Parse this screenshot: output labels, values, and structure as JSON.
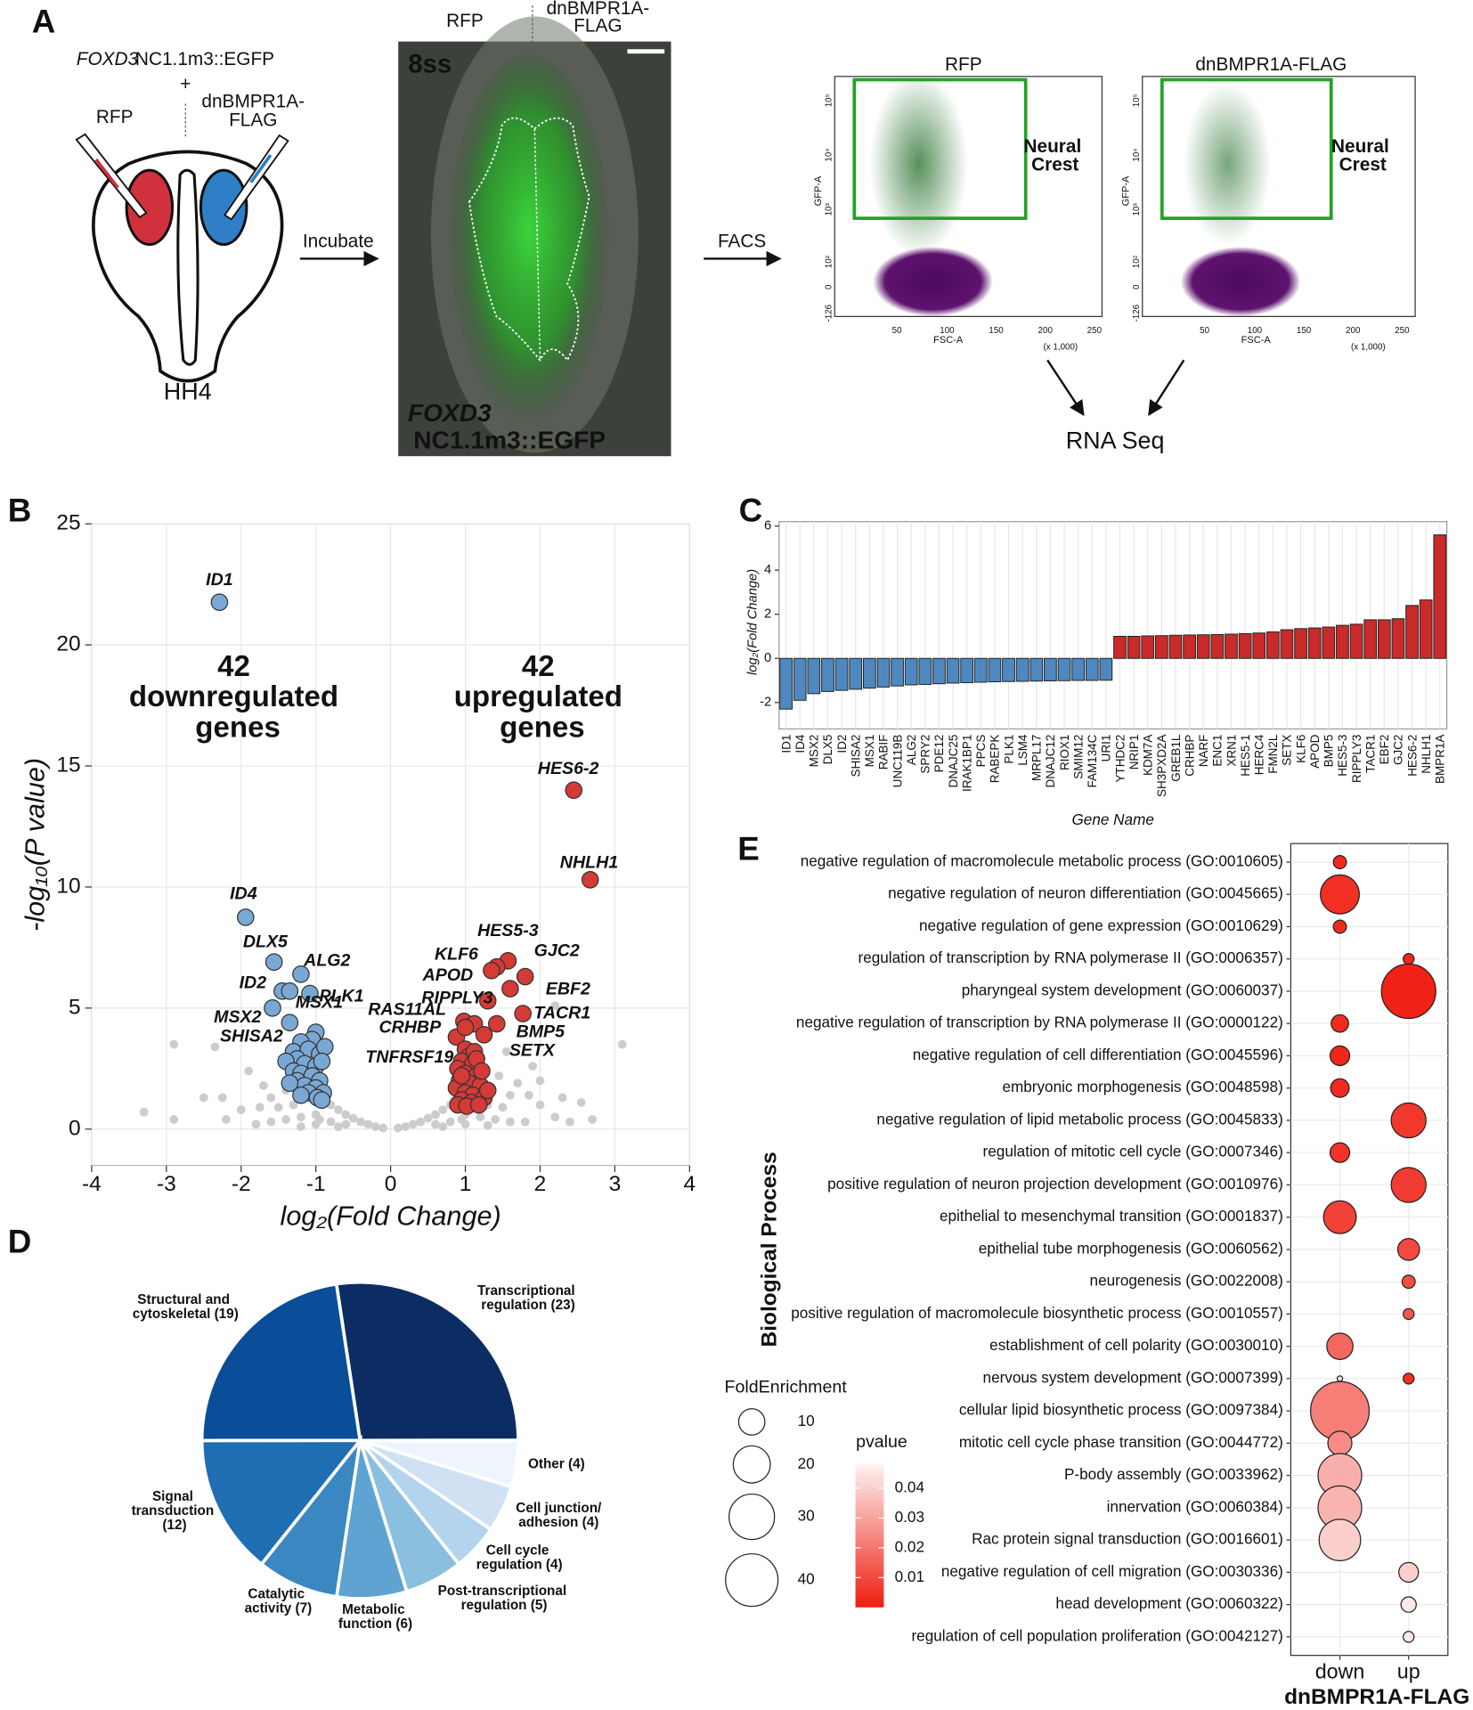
{
  "panel_labels": [
    "A",
    "B",
    "C",
    "D",
    "E"
  ],
  "diagram": {
    "reporter": {
      "gene": "FOXD3",
      "construct": "NC1.1m3::EGFP"
    },
    "plus": "+",
    "left_label": "RFP",
    "right_label": "dnBMPR1A-FLAG",
    "stage": "HH4",
    "step1": "Incubate",
    "image": {
      "left": "RFP",
      "right": "dnBMPR1A-FLAG",
      "stage": "8ss",
      "gene": "FOXD3",
      "construct": "NC1.1m3::EGFP"
    },
    "step2": "FACS",
    "facs": [
      {
        "title": "RFP"
      },
      {
        "title": "dnBMPR1A-FLAG"
      }
    ],
    "gate": "Neural Crest",
    "xlabel": "FSC-A",
    "ylabel": "GFP-A",
    "xticks": [
      "50",
      "100",
      "150",
      "200",
      "250"
    ],
    "xunit": "(x 1,000)",
    "yticks": [
      "-126",
      "0",
      "10²",
      "10³",
      "10⁴",
      "10⁵"
    ],
    "output": "RNA Seq"
  },
  "chart_data": [
    {
      "type": "scatter",
      "xlabel": "log₂(Fold Change)",
      "ylabel": "-log₁₀(P value)",
      "xlim": [
        -4,
        4
      ],
      "ylim": [
        -1.5,
        25
      ],
      "xticks": [
        -4,
        -3,
        -2,
        -1,
        0,
        1,
        2,
        3,
        4
      ],
      "yticks": [
        0,
        5,
        10,
        15,
        20,
        25
      ],
      "grid": true,
      "annotations": [
        "42 downregulated genes",
        "42 upregulated genes"
      ],
      "series": [
        {
          "color": "#cccccc",
          "x": [
            -0.1,
            0.1,
            -0.2,
            0.2,
            -0.3,
            0.3,
            -0.4,
            0.4,
            -0.5,
            0.5,
            -0.6,
            0.6,
            -0.7,
            0.7,
            -0.8,
            0.8,
            -0.9,
            0.85,
            -1.0,
            1.0,
            -1.2,
            1.2,
            -1.4,
            1.4,
            -1.6,
            1.6,
            -1.8,
            1.8,
            -0.6,
            0.6,
            -0.8,
            0.8,
            -1.0,
            1.0,
            -1.3,
            1.3,
            -1.5,
            1.5,
            -1.6,
            1.6,
            -1.7,
            1.7,
            -1.4,
            1.45,
            -2.0,
            2.0,
            -2.2,
            2.2,
            -1.9,
            1.9,
            1.55,
            -0.95,
            0.95,
            -0.7,
            0.7,
            -1.2,
            1.3,
            2.0,
            -2.5,
            -2.25,
            -3.3,
            -2.9,
            -2.9,
            -2.35,
            2.2,
            3.1,
            2.7,
            2.55,
            2.3,
            1.85,
            -1.75,
            2.4
          ],
          "y": [
            0.05,
            0.05,
            0.1,
            0.1,
            0.2,
            0.2,
            0.3,
            0.3,
            0.45,
            0.45,
            0.6,
            0.6,
            0.8,
            0.8,
            1.0,
            1.0,
            1.1,
            1.2,
            0.6,
            0.6,
            0.5,
            0.5,
            0.4,
            0.4,
            0.3,
            0.3,
            0.2,
            0.3,
            0.2,
            0.2,
            0.3,
            0.3,
            0.2,
            0.2,
            1.0,
            1.0,
            0.9,
            0.9,
            1.3,
            1.4,
            1.8,
            1.9,
            1.6,
            2.2,
            0.8,
            1.0,
            0.4,
            0.5,
            2.4,
            2.6,
            3.2,
            0.4,
            0.4,
            0.1,
            0.1,
            0.1,
            0.15,
            2.0,
            1.3,
            1.3,
            0.7,
            0.4,
            3.5,
            3.4,
            5.1,
            3.5,
            0.4,
            1.1,
            1.3,
            1.4,
            0.9,
            0.3
          ]
        },
        {
          "color": "#7aa8d4",
          "labels": [
            "ID1",
            "ID4",
            "DLX5",
            "ALG2",
            "ID2",
            "PLK1",
            "MSX1",
            "MSX2",
            "SHISA2",
            null,
            null,
            null,
            null,
            null,
            null,
            null,
            null,
            null,
            null,
            null,
            null,
            null,
            null,
            null,
            null,
            null,
            null,
            null,
            null,
            null,
            null,
            null,
            null,
            null
          ],
          "x": [
            -2.29,
            -1.94,
            -1.56,
            -1.2,
            -1.45,
            -1.08,
            -1.35,
            -1.58,
            -1.35,
            -1.0,
            -1.05,
            -1.2,
            -1.3,
            -1.1,
            -0.95,
            -1.25,
            -1.4,
            -1.15,
            -1.0,
            -1.3,
            -1.2,
            -1.05,
            -0.95,
            -1.25,
            -1.15,
            -1.0,
            -1.35,
            -0.9,
            -1.1,
            -0.98,
            -0.92,
            -1.2,
            -0.88,
            -0.92
          ],
          "y": [
            21.76,
            8.75,
            6.9,
            6.4,
            5.7,
            5.6,
            5.7,
            5.0,
            4.4,
            4.0,
            3.7,
            3.6,
            3.2,
            3.3,
            3.1,
            2.9,
            2.8,
            2.7,
            2.6,
            2.4,
            2.3,
            2.2,
            2.0,
            2.0,
            1.8,
            1.7,
            1.9,
            1.5,
            1.5,
            1.3,
            1.2,
            1.4,
            3.4,
            2.8
          ]
        },
        {
          "color": "#d43a36",
          "labels": [
            "HES6-2",
            "NHLH1",
            "HES5-3",
            "KLF6",
            "GJC2",
            "APOD",
            "EBF2",
            "RIPPLY3",
            "TACR1",
            "RAS11AL",
            "CRHBP",
            "BMP5",
            "SETX",
            "TNFRSF19",
            null,
            null,
            null,
            null,
            null,
            null,
            null,
            null,
            null,
            null,
            null,
            null,
            null,
            null,
            null,
            null,
            null,
            null,
            null,
            null,
            null,
            null,
            null,
            null,
            null
          ],
          "x": [
            2.45,
            2.67,
            1.57,
            1.42,
            1.8,
            1.35,
            1.6,
            1.3,
            1.77,
            0.98,
            1.12,
            1.42,
            1.25,
            0.88,
            1.0,
            1.05,
            0.95,
            1.1,
            0.9,
            1.0,
            1.15,
            0.92,
            1.05,
            1.2,
            0.88,
            1.0,
            1.1,
            0.95,
            1.08,
            1.25,
            1.3,
            0.9,
            1.02,
            1.18,
            1.12,
            1.0,
            0.95,
            1.15,
            1.22
          ],
          "y": [
            14.0,
            10.3,
            6.95,
            6.7,
            6.3,
            6.55,
            5.8,
            5.3,
            4.77,
            4.45,
            4.35,
            4.35,
            3.9,
            3.8,
            3.3,
            3.0,
            2.8,
            2.7,
            2.5,
            2.3,
            2.2,
            2.0,
            1.9,
            1.8,
            1.7,
            1.5,
            1.4,
            1.2,
            1.1,
            1.3,
            1.6,
            1.0,
            0.95,
            1.0,
            3.2,
            4.2,
            2.2,
            2.9,
            2.4
          ]
        }
      ]
    },
    {
      "type": "bar",
      "xlabel": "Gene Name",
      "ylabel": "log₂(Fold Change)",
      "ylim": [
        -3.2,
        6.2
      ],
      "yticks": [
        -2,
        0,
        2,
        4,
        6
      ],
      "grid": true,
      "negative_color": "#4e88bf",
      "positive_color": "#c92a2a",
      "categories": [
        "ID1",
        "ID4",
        "MSX2",
        "DLX5",
        "ID2",
        "SHISA2",
        "MSX1",
        "RABIF",
        "UNC119B",
        "ALG2",
        "SPRY2",
        "PDE12",
        "DNAJC25",
        "IRAK1BP1",
        "PPCS",
        "RABEPK",
        "PLK1",
        "LSM4",
        "MRPL17",
        "DNAJC12",
        "RIOX1",
        "SMIM12",
        "FAM134C",
        "URI1",
        "YTHDC2",
        "NRIP1",
        "KDM7A",
        "SH3PXD2A",
        "GREB1L",
        "CRHBP",
        "NARF",
        "ENC1",
        "XRN1",
        "HES5-1",
        "HERC4",
        "FMN2L",
        "SETX",
        "KLF6",
        "APOD",
        "BMP5",
        "HES5-3",
        "RIPPLY3",
        "TACR1",
        "EBF2",
        "GJC2",
        "HES6-2",
        "NHLH1",
        "BMPR1A"
      ],
      "values": [
        -2.3,
        -1.9,
        -1.6,
        -1.5,
        -1.45,
        -1.4,
        -1.35,
        -1.3,
        -1.25,
        -1.2,
        -1.18,
        -1.15,
        -1.12,
        -1.1,
        -1.08,
        -1.06,
        -1.05,
        -1.04,
        -1.03,
        -1.02,
        -1.01,
        -1.0,
        -1.0,
        -0.99,
        1.0,
        1.0,
        1.02,
        1.03,
        1.05,
        1.06,
        1.07,
        1.08,
        1.1,
        1.12,
        1.15,
        1.2,
        1.3,
        1.35,
        1.38,
        1.42,
        1.5,
        1.55,
        1.75,
        1.75,
        1.8,
        2.4,
        2.65,
        5.6
      ]
    },
    {
      "type": "pie",
      "categories": [
        "Transcriptional regulation (23)",
        "Other (4)",
        "Cell junction/ adhesion (4)",
        "Cell cycle regulation (4)",
        "Post-transcriptional regulation (5)",
        "Metabolic function (6)",
        "Catalytic activity (7)",
        "Signal transduction (12)",
        "Structural and cytoskeletal (19)"
      ],
      "values": [
        23,
        4,
        4,
        4,
        5,
        6,
        7,
        12,
        19
      ],
      "colors": [
        "#0b2d63",
        "#eef5fc",
        "#cfe1f3",
        "#b4d3ec",
        "#8bbfe0",
        "#5ea3d2",
        "#3b87c2",
        "#1f6db2",
        "#0a4d99"
      ]
    },
    {
      "type": "dot",
      "ylabel": "Biological Process",
      "xlabel": "dnBMPR1A-FLAG",
      "categories": [
        "negative regulation of macromolecule metabolic process (GO:0010605)",
        "negative regulation of neuron differentiation (GO:0045665)",
        "negative regulation of gene expression (GO:0010629)",
        "regulation of transcription by RNA polymerase II (GO:0006357)",
        "pharyngeal system development (GO:0060037)",
        "negative regulation of transcription by RNA polymerase II (GO:0000122)",
        "negative regulation of cell differentiation (GO:0045596)",
        "embryonic morphogenesis (GO:0048598)",
        "negative regulation of lipid metabolic process (GO:0045833)",
        "regulation of mitotic cell cycle (GO:0007346)",
        "positive regulation of neuron projection development (GO:0010976)",
        "epithelial to mesenchymal transition (GO:0001837)",
        "epithelial tube morphogenesis (GO:0060562)",
        "neurogenesis (GO:0022008)",
        "positive regulation of macromolecule biosynthetic process (GO:0010557)",
        "establishment of cell polarity (GO:0030010)",
        "nervous system development (GO:0007399)",
        "cellular lipid biosynthetic process (GO:0097384)",
        "mitotic cell cycle phase transition (GO:0044772)",
        "P-body assembly (GO:0033962)",
        "innervation (GO:0060384)",
        "Rac protein signal transduction (GO:0016601)",
        "negative regulation of cell migration (GO:0030336)",
        "head development (GO:0060322)",
        "regulation of cell population proliferation (GO:0042127)"
      ],
      "series": [
        {
          "name": "down",
          "size": [
            2.5,
            22,
            2.5,
            null,
            null,
            4.4,
            5.6,
            5,
            null,
            5.6,
            null,
            15.6,
            null,
            null,
            null,
            10,
            0.43,
            50,
            8.4,
            27.7,
            27.7,
            25,
            null,
            null,
            null
          ],
          "pvalue": [
            0.003,
            0.004,
            0.003,
            null,
            null,
            0.003,
            0.002,
            0.003,
            null,
            0.005,
            null,
            0.008,
            null,
            null,
            null,
            0.017,
            0.045,
            0.022,
            0.025,
            0.033,
            0.034,
            0.04,
            null,
            null,
            null
          ]
        },
        {
          "name": "up",
          "size": [
            null,
            null,
            null,
            1.7,
            43,
            null,
            null,
            null,
            17.7,
            null,
            17.7,
            null,
            6.9,
            2.5,
            1.7,
            null,
            1.7,
            null,
            null,
            null,
            null,
            null,
            5.6,
            3.4,
            1.7
          ],
          "pvalue": [
            null,
            null,
            null,
            0.002,
            0.001,
            null,
            null,
            null,
            0.006,
            null,
            0.007,
            null,
            0.01,
            0.011,
            0.013,
            null,
            0.004,
            null,
            null,
            null,
            null,
            null,
            0.04,
            0.046,
            0.046
          ]
        }
      ],
      "size_title": "FoldEnrichment",
      "size_legend": [
        10,
        20,
        30,
        40
      ],
      "color_title": "pvalue",
      "clim": [
        0,
        0.048
      ],
      "cticks": [
        0.01,
        0.02,
        0.03,
        0.04
      ],
      "color_low": "#f01d10",
      "color_high": "#fdf2f2",
      "grid": true
    }
  ]
}
